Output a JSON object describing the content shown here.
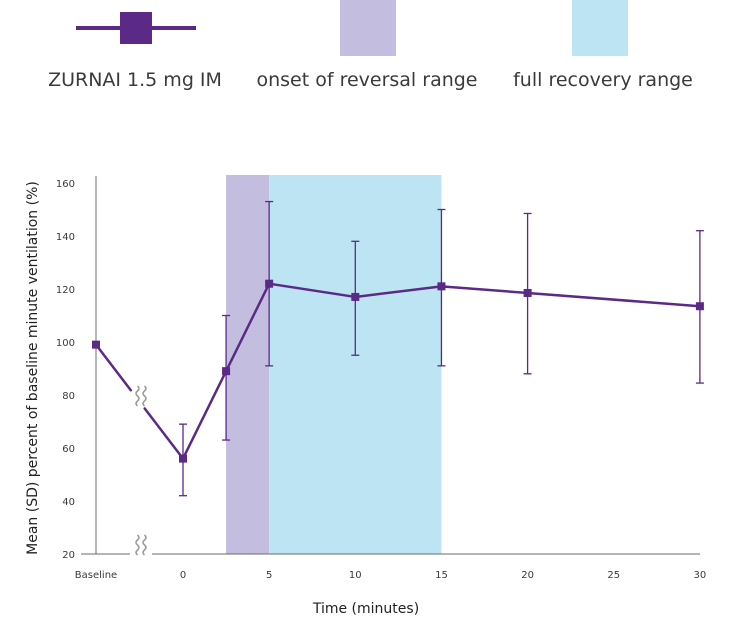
{
  "chart_data": {
    "type": "line",
    "series": [
      {
        "name": "ZURNAI 1.5 mg IM",
        "x": [
          "Baseline",
          0,
          2.5,
          5,
          10,
          15,
          20,
          30
        ],
        "mean": [
          99,
          56,
          89,
          122,
          117,
          121,
          118.5,
          113.5
        ],
        "sd_low": [
          null,
          42,
          63,
          91,
          95,
          91,
          88,
          84.5
        ],
        "sd_high": [
          null,
          69,
          110,
          153,
          138,
          150,
          148.5,
          142
        ]
      }
    ],
    "bands": [
      {
        "name": "onset of reversal range",
        "x_start": 2.5,
        "x_end": 5
      },
      {
        "name": "full recovery range",
        "x_start": 5,
        "x_end": 15
      }
    ],
    "x_ticks": [
      "Baseline",
      "0",
      "5",
      "10",
      "15",
      "20",
      "25",
      "30"
    ],
    "y_ticks": [
      "20",
      "40",
      "60",
      "80",
      "100",
      "120",
      "140",
      "160"
    ],
    "ylim": [
      20,
      160
    ],
    "xlim": [
      0,
      30
    ],
    "xlabel": "Time (minutes)",
    "ylabel": "Mean (SD) percent of baseline minute ventilation (%)",
    "axis_breaks": true,
    "legend_position": "top",
    "colors": {
      "line": "#5b2a86",
      "onset_band": "#c3bee0",
      "recovery_band": "#bce4f3",
      "axis": "#6b6b6b",
      "break": "#9a9a9a"
    }
  }
}
